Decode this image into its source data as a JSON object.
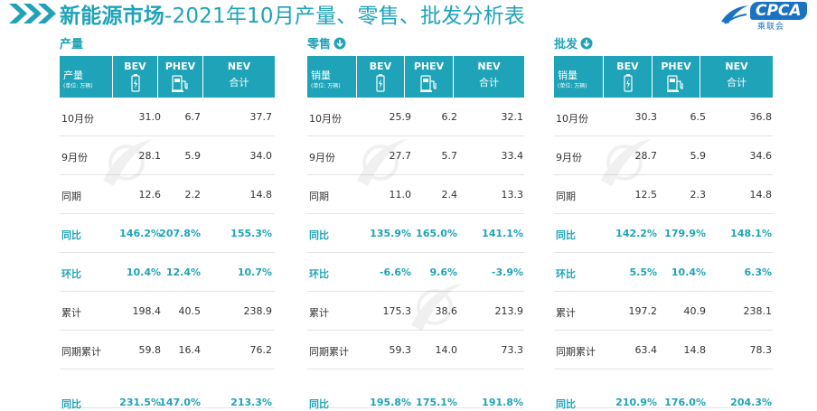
{
  "header": {
    "title_bold": "新能源市场",
    "title_rest": "-2021年10月产量、零售、批发分析表"
  },
  "logo": {
    "text": "CPCA",
    "cn": "乘联会",
    "sub": "CPCA"
  },
  "columns": {
    "bev": "BEV",
    "phev": "PHEV",
    "nev": "NEV",
    "nev_sub": "合计",
    "unit": "(单位: 万辆)"
  },
  "sections": [
    {
      "label": "产量",
      "row_header": "产量",
      "rows": [
        {
          "label": "10月份",
          "bev": "31.0",
          "phev": "6.7",
          "nev": "37.7"
        },
        {
          "label": "9月份",
          "bev": "28.1",
          "phev": "5.9",
          "nev": "34.0"
        },
        {
          "label": "同期",
          "bev": "12.6",
          "phev": "2.2",
          "nev": "14.8"
        },
        {
          "label": "同比",
          "bev": "146.2%",
          "phev": "207.8%",
          "nev": "155.3%"
        },
        {
          "label": "环比",
          "bev": "10.4%",
          "phev": "12.4%",
          "nev": "10.7%"
        },
        {
          "label": "累计",
          "bev": "198.4",
          "phev": "40.5",
          "nev": "238.9"
        },
        {
          "label": "同期累计",
          "bev": "59.8",
          "phev": "16.4",
          "nev": "76.2"
        },
        {
          "label": "同比",
          "bev": "231.5%",
          "phev": "147.0%",
          "nev": "213.3%"
        }
      ]
    },
    {
      "label": "零售",
      "row_header": "销量",
      "rows": [
        {
          "label": "10月份",
          "bev": "25.9",
          "phev": "6.2",
          "nev": "32.1"
        },
        {
          "label": "9月份",
          "bev": "27.7",
          "phev": "5.7",
          "nev": "33.4"
        },
        {
          "label": "同期",
          "bev": "11.0",
          "phev": "2.4",
          "nev": "13.3"
        },
        {
          "label": "同比",
          "bev": "135.9%",
          "phev": "165.0%",
          "nev": "141.1%"
        },
        {
          "label": "环比",
          "bev": "-6.6%",
          "phev": "9.6%",
          "nev": "-3.9%"
        },
        {
          "label": "累计",
          "bev": "175.3",
          "phev": "38.6",
          "nev": "213.9"
        },
        {
          "label": "同期累计",
          "bev": "59.3",
          "phev": "14.0",
          "nev": "73.3"
        },
        {
          "label": "同比",
          "bev": "195.8%",
          "phev": "175.1%",
          "nev": "191.8%"
        }
      ]
    },
    {
      "label": "批发",
      "row_header": "销量",
      "rows": [
        {
          "label": "10月份",
          "bev": "30.3",
          "phev": "6.5",
          "nev": "36.8"
        },
        {
          "label": "9月份",
          "bev": "28.7",
          "phev": "5.9",
          "nev": "34.6"
        },
        {
          "label": "同期",
          "bev": "12.5",
          "phev": "2.3",
          "nev": "14.8"
        },
        {
          "label": "同比",
          "bev": "142.2%",
          "phev": "179.9%",
          "nev": "148.1%"
        },
        {
          "label": "环比",
          "bev": "5.5%",
          "phev": "10.4%",
          "nev": "6.3%"
        },
        {
          "label": "累计",
          "bev": "197.2",
          "phev": "40.9",
          "nev": "238.1"
        },
        {
          "label": "同期累计",
          "bev": "63.4",
          "phev": "14.8",
          "nev": "78.3"
        },
        {
          "label": "同比",
          "bev": "210.9%",
          "phev": "176.0%",
          "nev": "204.3%"
        }
      ]
    }
  ],
  "colors": {
    "accent": "#1fa3b8",
    "brand": "#1a73c2"
  }
}
